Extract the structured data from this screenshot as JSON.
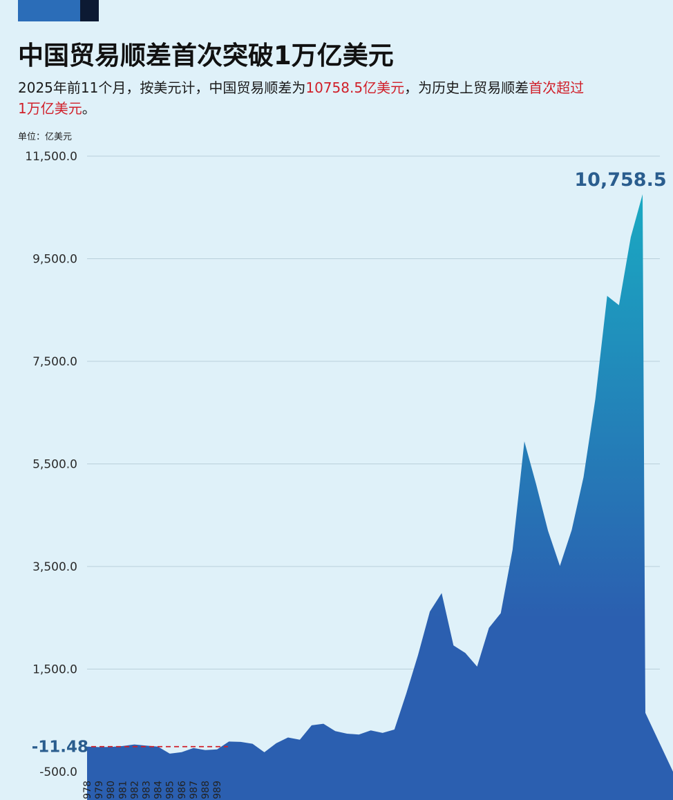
{
  "title": "中国贸易顺差首次突破1万亿美元",
  "subtitle": {
    "part1": "2025年前11个月，按美元计，中国贸易顺差为",
    "highlight1": "10758.5亿美元",
    "part2": "，为历史上贸易顺差",
    "highlight2": "首次超过1万亿美元",
    "part3": "。"
  },
  "colors": {
    "accent_red": "#d0202a",
    "area_top": "#1aa9c2",
    "area_bottom": "#2b5fb0",
    "label_blue": "#2a5d8e",
    "background": "#dff1f9"
  },
  "chart_data": {
    "type": "area",
    "unit_label": "单位：亿美元",
    "yticks": [
      "11,500.0",
      "9,500.0",
      "7,500.0",
      "5,500.0",
      "3,500.0",
      "1,500.0",
      "-500.0"
    ],
    "ytick_values": [
      11500,
      9500,
      7500,
      5500,
      3500,
      1500,
      -500
    ],
    "ylim": [
      -700,
      11500
    ],
    "grid": true,
    "x_labels_visible": [
      "1978",
      "1979",
      "1980",
      "1981",
      "1982",
      "1983",
      "1984",
      "1985",
      "1986",
      "1987",
      "1988",
      "1989"
    ],
    "x": [
      1978,
      1979,
      1980,
      1981,
      1982,
      1983,
      1984,
      1985,
      1986,
      1987,
      1988,
      1989,
      1990,
      1991,
      1992,
      1993,
      1994,
      1995,
      1996,
      1997,
      1998,
      1999,
      2000,
      2001,
      2002,
      2003,
      2004,
      2005,
      2006,
      2007,
      2008,
      2009,
      2010,
      2011,
      2012,
      2013,
      2014,
      2015,
      2016,
      2017,
      2018,
      2019,
      2020,
      2021,
      2022,
      2023,
      2024,
      2025
    ],
    "values": [
      -11.48,
      -20,
      -19,
      0,
      30,
      8,
      -13,
      -149,
      -120,
      -38,
      -78,
      -66,
      87,
      81,
      44,
      -122,
      54,
      167,
      122,
      404,
      435,
      292,
      241,
      225,
      304,
      255,
      321,
      1020,
      1775,
      2622,
      2981,
      1961,
      1815,
      1549,
      2303,
      2590,
      3825,
      5939,
      5099,
      4196,
      3509,
      4211,
      5240,
      6764,
      8776,
      8594,
      9922,
      10758.5
    ],
    "annotations": [
      {
        "label": "10,758.5",
        "x": 2025,
        "value": 10758.5
      },
      {
        "label": "-11.48",
        "x": 1978,
        "value": -11.48
      }
    ]
  }
}
